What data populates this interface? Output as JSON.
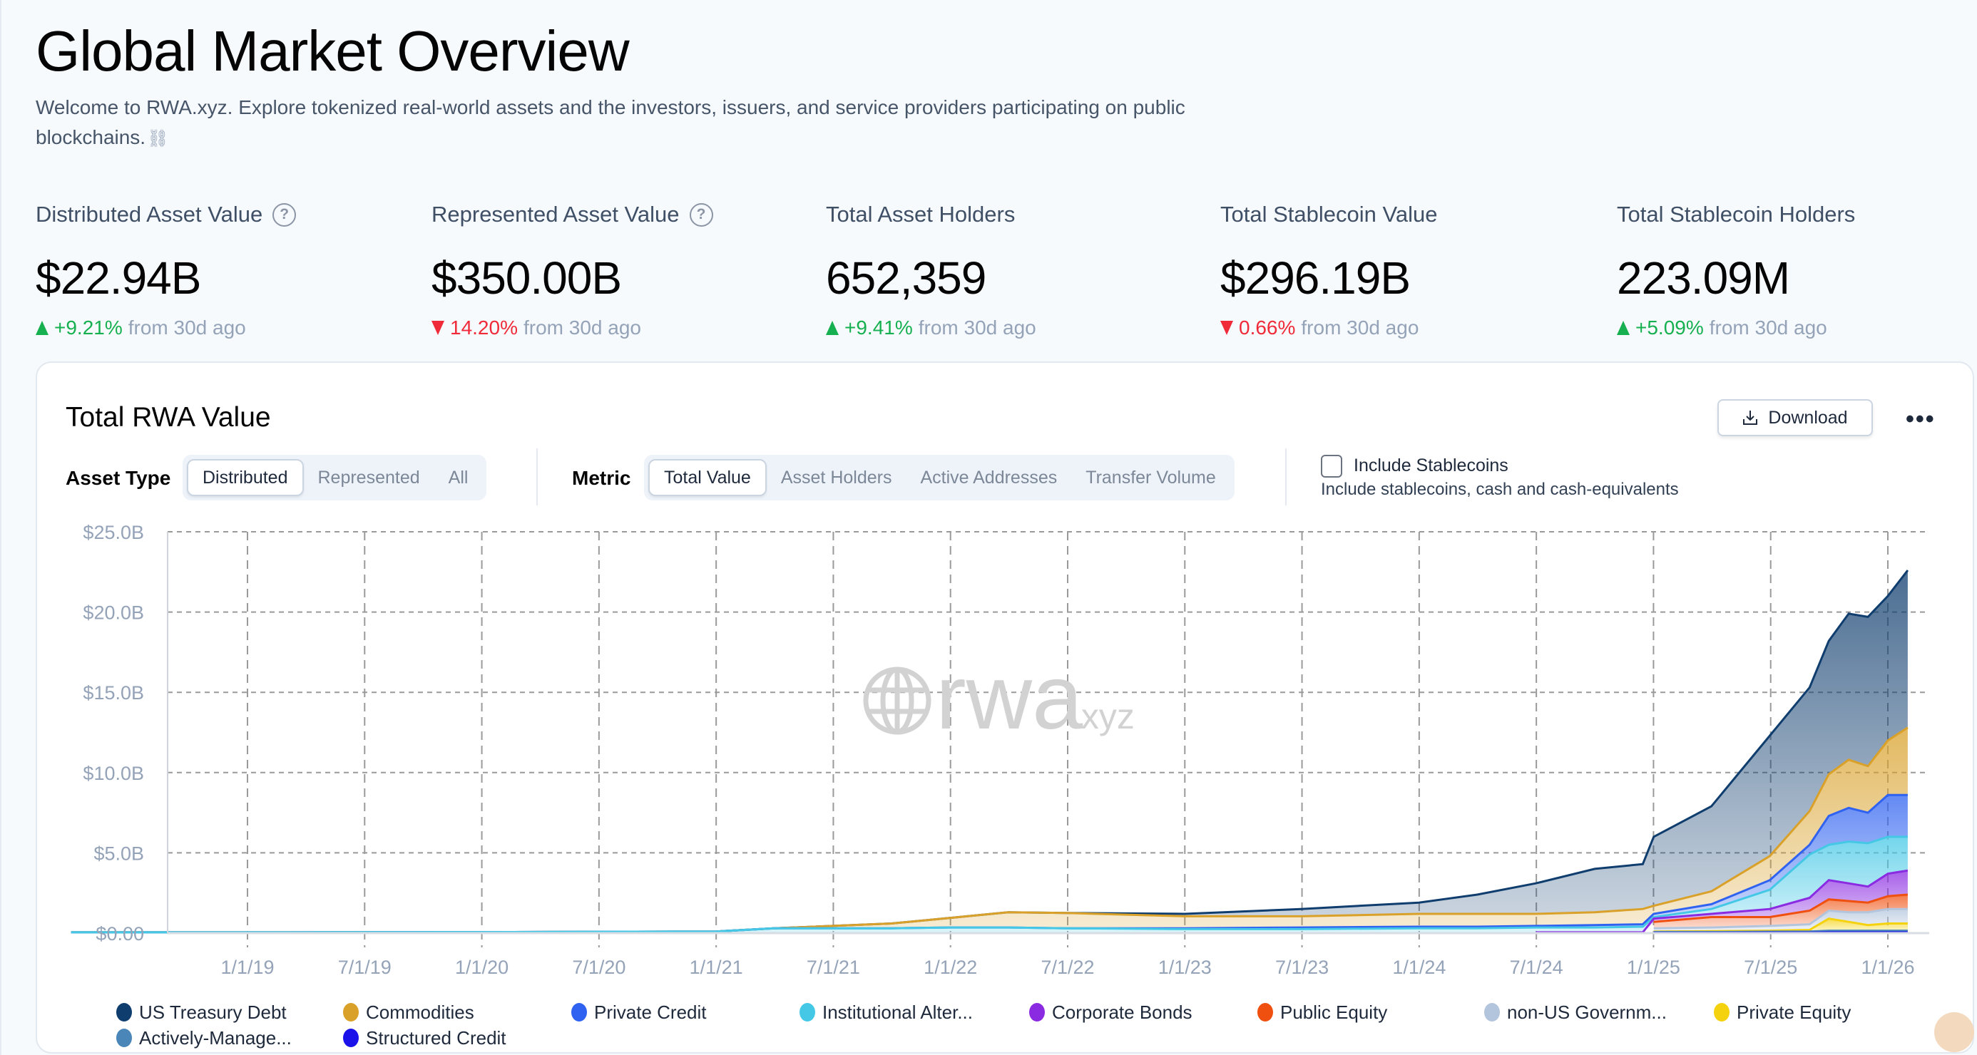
{
  "header": {
    "title": "Global Market Overview",
    "subtitle": "Welcome to RWA.xyz. Explore tokenized real-world assets and the investors, issuers, and service providers participating on public blockchains.",
    "subtitle_icon": "chain-link-icon"
  },
  "stats": [
    {
      "label": "Distributed Asset Value",
      "help": true,
      "value": "$22.94B",
      "change": "+9.21%",
      "direction": "up",
      "suffix": "from 30d ago"
    },
    {
      "label": "Represented Asset Value",
      "help": true,
      "value": "$350.00B",
      "change": "14.20%",
      "direction": "down",
      "suffix": "from 30d ago"
    },
    {
      "label": "Total Asset Holders",
      "help": false,
      "value": "652,359",
      "change": "+9.41%",
      "direction": "up",
      "suffix": "from 30d ago"
    },
    {
      "label": "Total Stablecoin Value",
      "help": false,
      "value": "$296.19B",
      "change": "0.66%",
      "direction": "down",
      "suffix": "from 30d ago"
    },
    {
      "label": "Total Stablecoin Holders",
      "help": false,
      "value": "223.09M",
      "change": "+5.09%",
      "direction": "up",
      "suffix": "from 30d ago"
    }
  ],
  "colors": {
    "up": "#16b050",
    "down": "#ef2b3a"
  },
  "card": {
    "title": "Total RWA Value",
    "download_label": "Download",
    "more_label": "•••",
    "asset_type": {
      "label": "Asset Type",
      "options": [
        "Distributed",
        "Represented",
        "All"
      ],
      "selected": "Distributed"
    },
    "metric": {
      "label": "Metric",
      "options": [
        "Total Value",
        "Asset Holders",
        "Active Addresses",
        "Transfer Volume"
      ],
      "selected": "Total Value"
    },
    "stablecoins": {
      "label": "Include Stablecoins",
      "description": "Include stablecoins, cash and cash-equivalents",
      "checked": false
    },
    "watermark": {
      "main": "rwa",
      "suffix": ".xyz"
    }
  },
  "chart_data": {
    "type": "area",
    "stacked": true,
    "title": "Total RWA Value",
    "ylim": [
      0,
      25
    ],
    "y_unit": "$B",
    "y_ticks": [
      "$0.00",
      "$5.0B",
      "$10.0B",
      "$15.0B",
      "$20.0B",
      "$25.0B"
    ],
    "x_ticks": [
      "1/1/19",
      "7/1/19",
      "1/1/20",
      "7/1/20",
      "1/1/21",
      "7/1/21",
      "1/1/22",
      "7/1/22",
      "1/1/23",
      "7/1/23",
      "1/1/24",
      "7/1/24",
      "1/1/25",
      "7/1/25",
      "1/1/26"
    ],
    "grid": true,
    "legend_position": "bottom",
    "x": [
      "2018-04-01",
      "2019-01-01",
      "2020-01-01",
      "2021-01-01",
      "2021-04-01",
      "2021-10-01",
      "2022-01-01",
      "2022-04-01",
      "2022-07-01",
      "2023-01-01",
      "2023-07-01",
      "2024-01-01",
      "2024-04-01",
      "2024-07-01",
      "2024-10-01",
      "2024-12-15",
      "2025-01-01",
      "2025-04-01",
      "2025-07-01",
      "2025-09-01",
      "2025-10-01",
      "2025-11-01",
      "2025-12-01",
      "2026-01-01",
      "2026-02-01"
    ],
    "series": [
      {
        "name": "Structured Credit",
        "color": "#1a12e8",
        "values": [
          0,
          0,
          0,
          0,
          0,
          0,
          0,
          0,
          0,
          0,
          0,
          0,
          0,
          0,
          0,
          0,
          0.02,
          0.02,
          0.03,
          0.03,
          0.05,
          0.05,
          0.05,
          0.05,
          0.05
        ]
      },
      {
        "name": "Actively-Manage...",
        "color": "#4a86b8",
        "values": [
          0,
          0,
          0,
          0,
          0,
          0,
          0,
          0,
          0,
          0,
          0,
          0,
          0,
          0,
          0,
          0,
          0.05,
          0.05,
          0.06,
          0.07,
          0.1,
          0.1,
          0.1,
          0.1,
          0.1
        ]
      },
      {
        "name": "Private Equity",
        "color": "#f5d20f",
        "values": [
          0,
          0,
          0,
          0,
          0,
          0,
          0,
          0,
          0,
          0,
          0,
          0,
          0,
          0,
          0,
          0,
          0.03,
          0.05,
          0.06,
          0.1,
          0.75,
          0.55,
          0.35,
          0.45,
          0.45
        ]
      },
      {
        "name": "non-US Governm...",
        "color": "#b3c5dc",
        "values": [
          0,
          0,
          0,
          0,
          0,
          0,
          0,
          0,
          0,
          0,
          0,
          0,
          0,
          0,
          0,
          0,
          0.2,
          0.23,
          0.3,
          0.35,
          0.5,
          0.6,
          0.8,
          0.9,
          0.9
        ]
      },
      {
        "name": "Public Equity",
        "color": "#f0500f",
        "values": [
          0,
          0,
          0,
          0,
          0,
          0,
          0,
          0,
          0,
          0,
          0,
          0,
          0,
          0,
          0,
          0,
          0.4,
          0.65,
          0.55,
          0.85,
          0.7,
          0.7,
          0.6,
          0.8,
          0.9
        ]
      },
      {
        "name": "Corporate Bonds",
        "color": "#8a2be2",
        "values": [
          0,
          0,
          0,
          0,
          0,
          0,
          0,
          0,
          0,
          0,
          0,
          0,
          0,
          0.05,
          0.05,
          0.05,
          0.2,
          0.2,
          0.5,
          0.8,
          1.2,
          1.1,
          1.0,
          1.4,
          1.5
        ]
      },
      {
        "name": "Institutional Alter...",
        "color": "#45c8e6",
        "values": [
          0.05,
          0.05,
          0.06,
          0.1,
          0.3,
          0.3,
          0.35,
          0.35,
          0.3,
          0.25,
          0.25,
          0.3,
          0.3,
          0.3,
          0.3,
          0.35,
          0.1,
          0.3,
          1.2,
          2.7,
          2.2,
          2.6,
          2.7,
          2.3,
          2.1
        ]
      },
      {
        "name": "Private Credit",
        "color": "#2f62f0",
        "values": [
          0,
          0,
          0,
          0,
          0,
          0,
          0,
          0,
          0,
          0.05,
          0.1,
          0.1,
          0.1,
          0.1,
          0.15,
          0.15,
          0.2,
          0.3,
          0.6,
          0.6,
          1.8,
          2.1,
          1.9,
          2.6,
          2.6
        ]
      },
      {
        "name": "Commodities",
        "color": "#d9a12a",
        "values": [
          0,
          0,
          0,
          0,
          0,
          0.3,
          0.6,
          0.95,
          0.95,
          0.75,
          0.7,
          0.8,
          0.8,
          0.75,
          0.8,
          0.95,
          0.5,
          0.8,
          1.5,
          2.1,
          2.6,
          3.0,
          2.9,
          3.4,
          4.2
        ]
      },
      {
        "name": "US Treasury Debt",
        "color": "#0f3d6e",
        "values": [
          0,
          0,
          0,
          0,
          0,
          0,
          0,
          0,
          0,
          0.15,
          0.45,
          0.7,
          1.2,
          1.9,
          2.7,
          2.8,
          4.3,
          5.3,
          7.5,
          7.7,
          8.3,
          9.1,
          9.3,
          9.0,
          9.8
        ]
      }
    ],
    "legend": [
      "US Treasury Debt",
      "Commodities",
      "Private Credit",
      "Institutional Alter...",
      "Corporate Bonds",
      "Public Equity",
      "non-US Governm...",
      "Private Equity",
      "Actively-Manage...",
      "Structured Credit"
    ]
  }
}
